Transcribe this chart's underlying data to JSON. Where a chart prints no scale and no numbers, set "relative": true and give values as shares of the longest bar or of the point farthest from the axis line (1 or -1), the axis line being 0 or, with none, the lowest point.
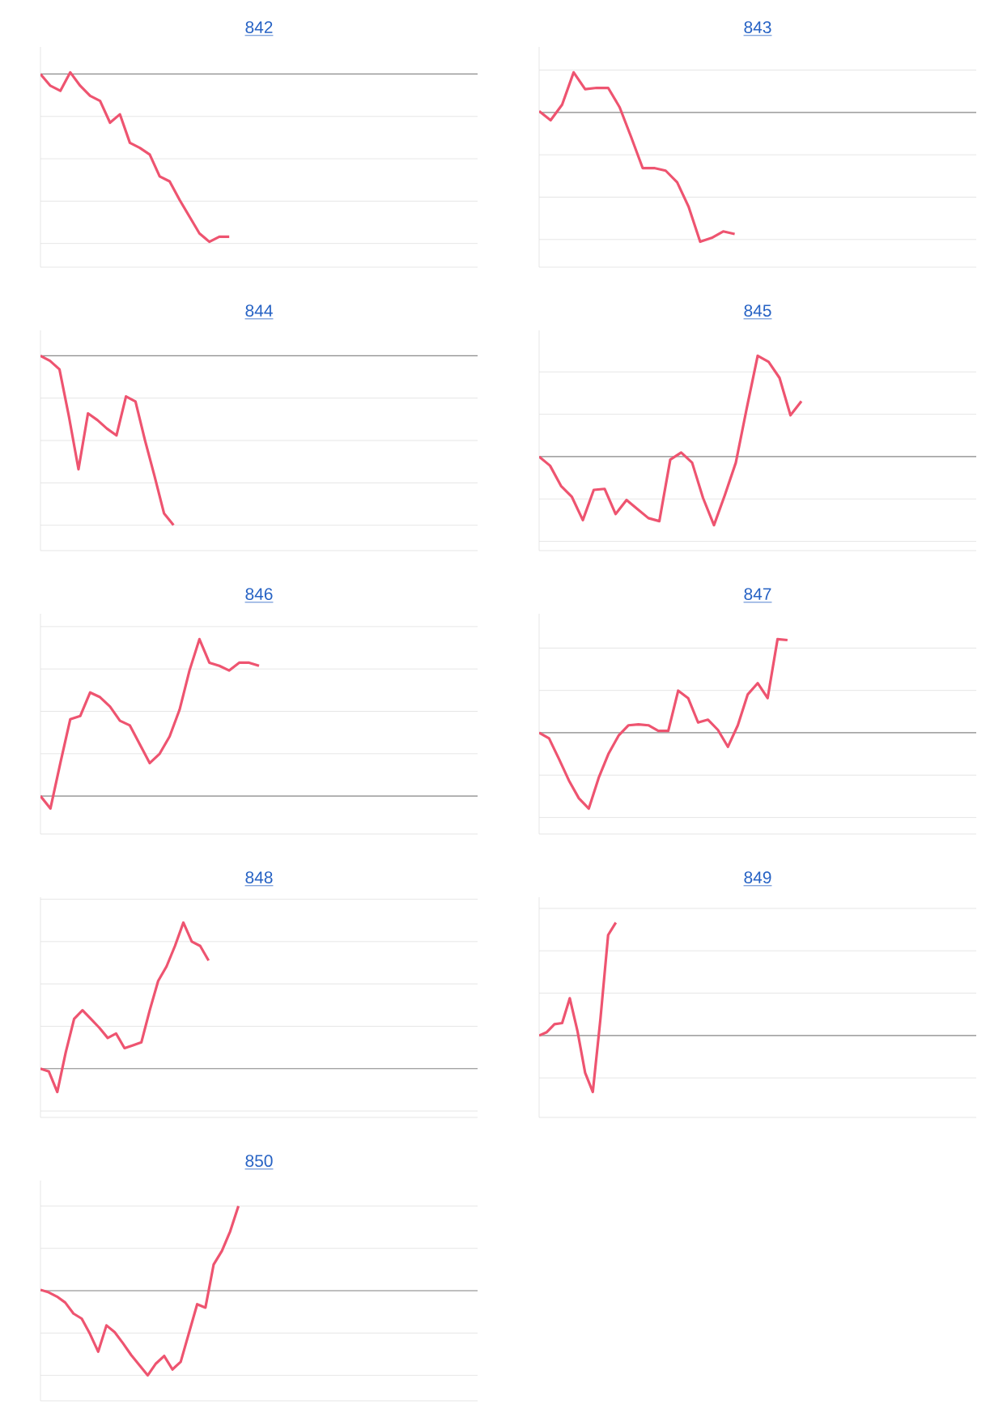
{
  "chart_data": [
    {
      "type": "line",
      "title": "842",
      "color": "#ee5470",
      "relative": true,
      "grid": "y",
      "categories": [
        null,
        null,
        null,
        null,
        null,
        null,
        null,
        null,
        null,
        null,
        null,
        null,
        null,
        null,
        null,
        null,
        null,
        null,
        null,
        null,
        null,
        null,
        null,
        null,
        null,
        null,
        null,
        null,
        null,
        null,
        null,
        null,
        null,
        null,
        null,
        null,
        null,
        null,
        null,
        null,
        null,
        null,
        null,
        null,
        null
      ],
      "values": [
        0,
        -0.07,
        -0.1,
        0.01,
        -0.07,
        -0.13,
        -0.16,
        -0.29,
        -0.24,
        -0.41,
        -0.44,
        -0.48,
        -0.61,
        -0.64,
        -0.75,
        -0.85,
        -0.95,
        -1,
        -0.97,
        -0.97,
        null,
        null,
        null,
        null,
        null,
        null,
        null,
        null,
        null,
        null,
        null,
        null,
        null,
        null,
        null,
        null,
        null,
        null,
        null,
        null,
        null,
        null,
        null,
        null,
        null
      ]
    },
    {
      "type": "line",
      "title": "843",
      "color": "#ee5470",
      "relative": true,
      "grid": "y",
      "categories": [
        null,
        null,
        null,
        null,
        null,
        null,
        null,
        null,
        null,
        null,
        null,
        null,
        null,
        null,
        null,
        null,
        null,
        null,
        null,
        null,
        null,
        null,
        null,
        null,
        null,
        null,
        null,
        null,
        null,
        null,
        null,
        null,
        null,
        null,
        null,
        null,
        null,
        null,
        null
      ],
      "values": [
        0.01,
        -0.06,
        0.06,
        0.31,
        0.18,
        0.19,
        0.19,
        0.04,
        -0.19,
        -0.43,
        -0.43,
        -0.45,
        -0.54,
        -0.73,
        -1,
        -0.97,
        -0.92,
        -0.94,
        null,
        null,
        null,
        null,
        null,
        null,
        null,
        null,
        null,
        null,
        null,
        null,
        null,
        null,
        null,
        null,
        null,
        null,
        null,
        null,
        null
      ]
    },
    {
      "type": "line",
      "title": "844",
      "color": "#ee5470",
      "relative": true,
      "grid": "y",
      "categories": [
        null,
        null,
        null,
        null,
        null,
        null,
        null,
        null,
        null,
        null,
        null,
        null,
        null,
        null,
        null,
        null,
        null,
        null,
        null,
        null,
        null,
        null,
        null,
        null,
        null,
        null,
        null,
        null,
        null,
        null,
        null,
        null,
        null,
        null,
        null,
        null,
        null,
        null,
        null,
        null,
        null,
        null,
        null,
        null,
        null,
        null,
        null
      ],
      "values": [
        0,
        -0.03,
        -0.08,
        -0.36,
        -0.67,
        -0.34,
        -0.38,
        -0.43,
        -0.47,
        -0.24,
        -0.27,
        -0.5,
        -0.71,
        -0.93,
        -1,
        null,
        null,
        null,
        null,
        null,
        null,
        null,
        null,
        null,
        null,
        null,
        null,
        null,
        null,
        null,
        null,
        null,
        null,
        null,
        null,
        null,
        null,
        null,
        null,
        null,
        null,
        null,
        null,
        null,
        null,
        null,
        null
      ]
    },
    {
      "type": "line",
      "title": "845",
      "color": "#ee5470",
      "relative": true,
      "grid": "y",
      "categories": [
        null,
        null,
        null,
        null,
        null,
        null,
        null,
        null,
        null,
        null,
        null,
        null,
        null,
        null,
        null,
        null,
        null,
        null,
        null,
        null,
        null,
        null,
        null,
        null,
        null,
        null,
        null,
        null,
        null,
        null,
        null,
        null,
        null,
        null,
        null,
        null,
        null,
        null,
        null,
        null,
        null
      ],
      "values": [
        0,
        -0.09,
        -0.29,
        -0.4,
        -0.63,
        -0.33,
        -0.32,
        -0.57,
        -0.43,
        -0.52,
        -0.61,
        -0.64,
        -0.03,
        0.04,
        -0.06,
        -0.41,
        -0.68,
        -0.38,
        -0.06,
        0.48,
        1,
        0.94,
        0.78,
        0.41,
        0.55,
        null,
        null,
        null,
        null,
        null,
        null,
        null,
        null,
        null,
        null,
        null,
        null,
        null,
        null,
        null,
        null
      ]
    },
    {
      "type": "line",
      "title": "846",
      "color": "#ee5470",
      "relative": true,
      "grid": "y",
      "categories": [
        null,
        null,
        null,
        null,
        null,
        null,
        null,
        null,
        null,
        null,
        null,
        null,
        null,
        null,
        null,
        null,
        null,
        null,
        null,
        null,
        null,
        null,
        null,
        null,
        null,
        null,
        null,
        null,
        null,
        null,
        null,
        null,
        null,
        null,
        null,
        null,
        null,
        null,
        null,
        null,
        null,
        null,
        null,
        null,
        null
      ],
      "values": [
        0,
        -0.08,
        0.21,
        0.49,
        0.51,
        0.66,
        0.63,
        0.57,
        0.48,
        0.45,
        0.33,
        0.21,
        0.27,
        0.38,
        0.55,
        0.8,
        1,
        0.85,
        0.83,
        0.8,
        0.85,
        0.85,
        0.83,
        null,
        null,
        null,
        null,
        null,
        null,
        null,
        null,
        null,
        null,
        null,
        null,
        null,
        null,
        null,
        null,
        null,
        null,
        null,
        null,
        null,
        null
      ]
    },
    {
      "type": "line",
      "title": "847",
      "color": "#ee5470",
      "relative": true,
      "grid": "y",
      "categories": [
        null,
        null,
        null,
        null,
        null,
        null,
        null,
        null,
        null,
        null,
        null,
        null,
        null,
        null,
        null,
        null,
        null,
        null,
        null,
        null,
        null,
        null,
        null,
        null,
        null,
        null,
        null,
        null,
        null,
        null,
        null,
        null,
        null,
        null,
        null,
        null,
        null,
        null,
        null,
        null,
        null,
        null,
        null,
        null,
        null
      ],
      "values": [
        0,
        -0.06,
        -0.28,
        -0.51,
        -0.7,
        -0.81,
        -0.48,
        -0.22,
        -0.03,
        0.08,
        0.09,
        0.08,
        0.02,
        0.02,
        0.45,
        0.37,
        0.11,
        0.14,
        0.03,
        -0.15,
        0.08,
        0.41,
        0.53,
        0.37,
        1,
        0.99,
        null,
        null,
        null,
        null,
        null,
        null,
        null,
        null,
        null,
        null,
        null,
        null,
        null,
        null,
        null,
        null,
        null,
        null,
        null
      ]
    },
    {
      "type": "line",
      "title": "848",
      "color": "#ee5470",
      "relative": true,
      "grid": "y",
      "categories": [
        null,
        null,
        null,
        null,
        null,
        null,
        null,
        null,
        null,
        null,
        null,
        null,
        null,
        null,
        null,
        null,
        null,
        null,
        null,
        null,
        null,
        null,
        null,
        null,
        null,
        null,
        null,
        null,
        null,
        null,
        null,
        null,
        null,
        null,
        null,
        null,
        null,
        null,
        null,
        null,
        null,
        null,
        null,
        null,
        null,
        null,
        null,
        null,
        null,
        null,
        null,
        null,
        null
      ],
      "values": [
        0,
        -0.02,
        -0.16,
        0.11,
        0.34,
        0.4,
        0.34,
        0.28,
        0.21,
        0.24,
        0.14,
        0.16,
        0.18,
        0.4,
        0.6,
        0.7,
        0.84,
        1,
        0.87,
        0.84,
        0.74,
        null,
        null,
        null,
        null,
        null,
        null,
        null,
        null,
        null,
        null,
        null,
        null,
        null,
        null,
        null,
        null,
        null,
        null,
        null,
        null,
        null,
        null,
        null,
        null,
        null,
        null,
        null,
        null,
        null,
        null,
        null,
        null
      ]
    },
    {
      "type": "line",
      "title": "849",
      "color": "#ee5470",
      "relative": true,
      "grid": "y",
      "categories": [
        null,
        null,
        null,
        null,
        null,
        null,
        null,
        null,
        null,
        null,
        null,
        null,
        null,
        null,
        null,
        null,
        null,
        null,
        null,
        null,
        null,
        null,
        null,
        null,
        null,
        null,
        null,
        null,
        null,
        null,
        null,
        null,
        null,
        null,
        null,
        null,
        null,
        null,
        null,
        null,
        null,
        null,
        null,
        null,
        null,
        null,
        null,
        null,
        null,
        null,
        null,
        null,
        null,
        null,
        null,
        null,
        null,
        null
      ],
      "values": [
        0,
        0.03,
        0.1,
        0.11,
        0.33,
        0.04,
        -0.33,
        -0.5,
        0.15,
        0.89,
        1,
        null,
        null,
        null,
        null,
        null,
        null,
        null,
        null,
        null,
        null,
        null,
        null,
        null,
        null,
        null,
        null,
        null,
        null,
        null,
        null,
        null,
        null,
        null,
        null,
        null,
        null,
        null,
        null,
        null,
        null,
        null,
        null,
        null,
        null,
        null,
        null,
        null,
        null,
        null,
        null,
        null,
        null,
        null,
        null,
        null,
        null,
        null
      ]
    },
    {
      "type": "line",
      "title": "850",
      "color": "#ee5470",
      "relative": true,
      "grid": "y",
      "categories": [
        null,
        null,
        null,
        null,
        null,
        null,
        null,
        null,
        null,
        null,
        null,
        null,
        null,
        null,
        null,
        null,
        null,
        null,
        null,
        null,
        null,
        null,
        null,
        null,
        null,
        null,
        null,
        null,
        null,
        null,
        null,
        null,
        null,
        null,
        null,
        null,
        null,
        null,
        null,
        null,
        null,
        null,
        null,
        null,
        null,
        null,
        null,
        null,
        null,
        null,
        null,
        null,
        null,
        null
      ],
      "values": [
        0.01,
        -0.02,
        -0.07,
        -0.14,
        -0.27,
        -0.33,
        -0.51,
        -0.72,
        -0.41,
        -0.49,
        -0.62,
        -0.76,
        -0.88,
        -1,
        -0.86,
        -0.77,
        -0.93,
        -0.84,
        -0.5,
        -0.16,
        -0.2,
        0.31,
        0.47,
        0.7,
        1,
        null,
        null,
        null,
        null,
        null,
        null,
        null,
        null,
        null,
        null,
        null,
        null,
        null,
        null,
        null,
        null,
        null,
        null,
        null,
        null,
        null,
        null,
        null,
        null,
        null,
        null,
        null,
        null,
        null
      ]
    }
  ]
}
